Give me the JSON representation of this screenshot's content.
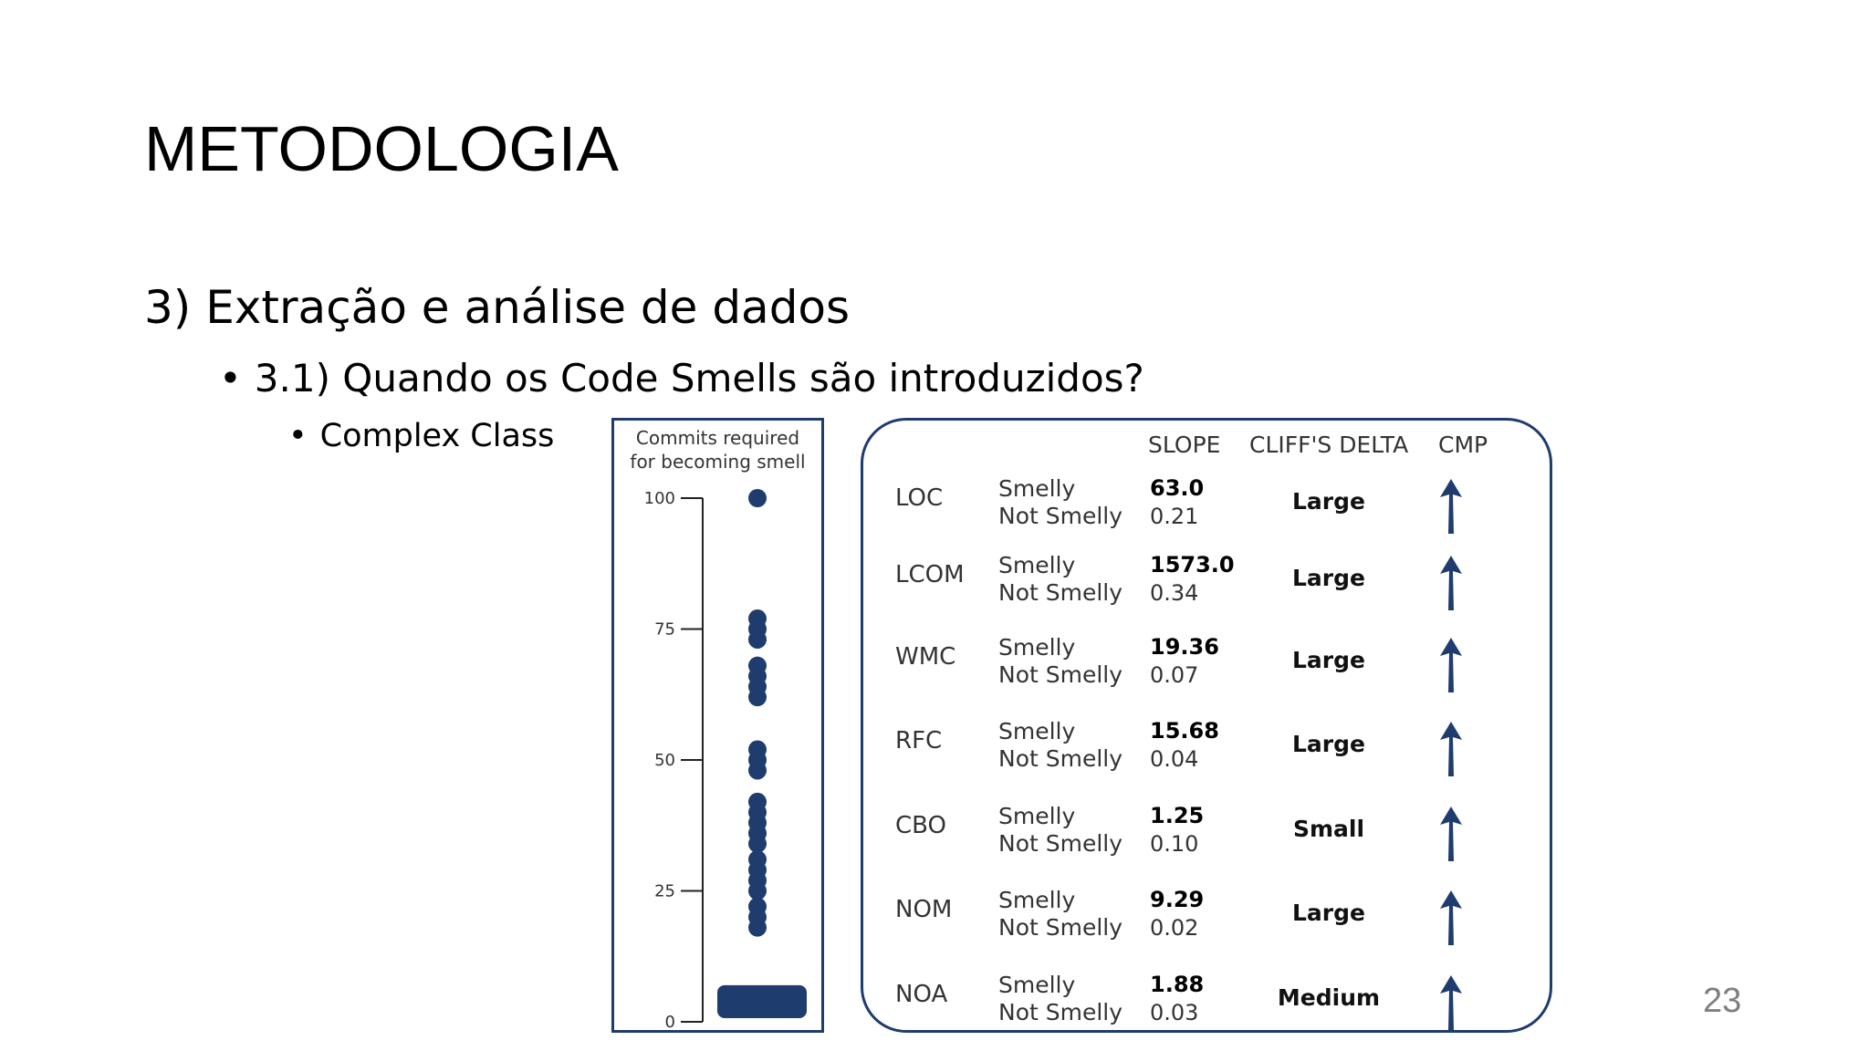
{
  "slide": {
    "title": "METODOLOGIA",
    "level1": "3) Extração e análise de dados",
    "level2": "3.1) Quando os Code Smells são introduzidos?",
    "level3": "Complex Class",
    "bullet_glyph": "•",
    "page_number": "23"
  },
  "strip_chart": {
    "header_line1": "Commits required",
    "header_line2": "for becoming smell",
    "ticks": [
      "100",
      "75",
      "50",
      "25",
      "0"
    ]
  },
  "table": {
    "headers": {
      "slope": "SLOPE",
      "cliffs_delta": "CLIFF'S DELTA",
      "cmp": "CMP"
    },
    "rows": [
      {
        "metric": "LOC",
        "smelly_label": "Smelly",
        "not_smelly_label": "Not Smelly",
        "slope_smelly": "63.0",
        "slope_not_smelly": "0.21",
        "effect": "Large",
        "cmp_icon": "arrow-up-icon"
      },
      {
        "metric": "LCOM",
        "smelly_label": "Smelly",
        "not_smelly_label": "Not Smelly",
        "slope_smelly": "1573.0",
        "slope_not_smelly": "0.34",
        "effect": "Large",
        "cmp_icon": "arrow-up-icon"
      },
      {
        "metric": "WMC",
        "smelly_label": "Smelly",
        "not_smelly_label": "Not Smelly",
        "slope_smelly": "19.36",
        "slope_not_smelly": "0.07",
        "effect": "Large",
        "cmp_icon": "arrow-up-icon"
      },
      {
        "metric": "RFC",
        "smelly_label": "Smelly",
        "not_smelly_label": "Not Smelly",
        "slope_smelly": "15.68",
        "slope_not_smelly": "0.04",
        "effect": "Large",
        "cmp_icon": "arrow-up-icon"
      },
      {
        "metric": "CBO",
        "smelly_label": "Smelly",
        "not_smelly_label": "Not Smelly",
        "slope_smelly": "1.25",
        "slope_not_smelly": "0.10",
        "effect": "Small",
        "cmp_icon": "arrow-up-icon"
      },
      {
        "metric": "NOM",
        "smelly_label": "Smelly",
        "not_smelly_label": "Not Smelly",
        "slope_smelly": "9.29",
        "slope_not_smelly": "0.02",
        "effect": "Large",
        "cmp_icon": "arrow-up-icon"
      },
      {
        "metric": "NOA",
        "smelly_label": "Smelly",
        "not_smelly_label": "Not Smelly",
        "slope_smelly": "1.88",
        "slope_not_smelly": "0.03",
        "effect": "Medium",
        "cmp_icon": "arrow-up-icon"
      }
    ]
  },
  "chart_data": {
    "type": "scatter",
    "title": "Commits required for becoming smell",
    "ylim": [
      0,
      100
    ],
    "yticks": [
      100,
      75,
      50,
      25,
      0
    ],
    "grid": false,
    "color": "#1f3c6e",
    "points": [
      100,
      77,
      75,
      73,
      68,
      66,
      64,
      62,
      52,
      50,
      48,
      42,
      40,
      38,
      36,
      34,
      31,
      29,
      27,
      25,
      22,
      20,
      18
    ],
    "dense_cluster_range": [
      0,
      7
    ]
  },
  "colors": {
    "accent": "#1f3c6e",
    "page_number": "#7f7f7f"
  }
}
